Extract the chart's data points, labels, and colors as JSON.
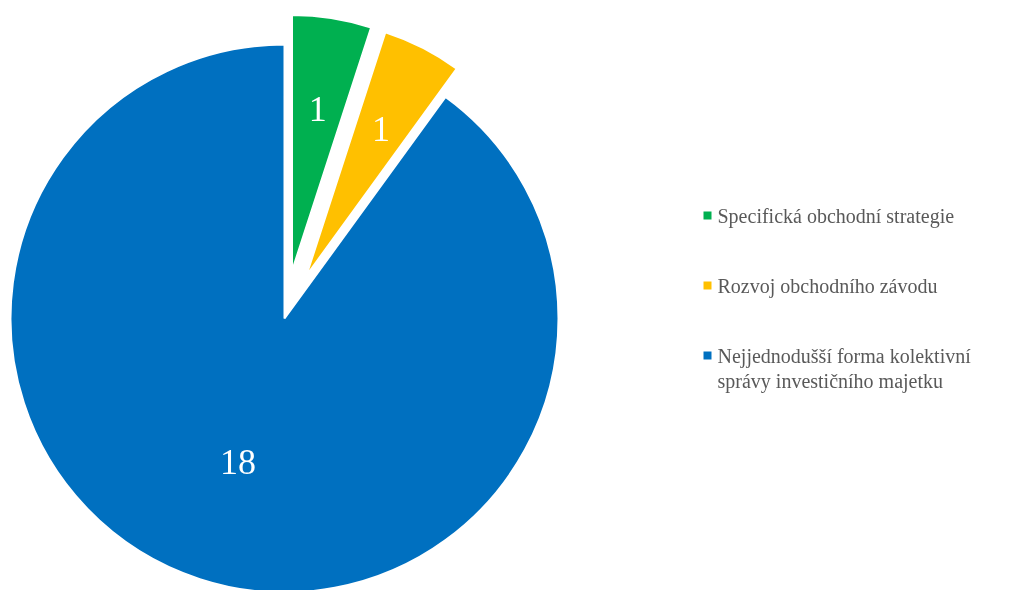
{
  "chart_data": {
    "type": "pie",
    "categories": [
      "Specifická obchodní strategie",
      "Rozvoj obchodního závodu",
      "Nejjednodušší forma kolektivní správy investičního majetku"
    ],
    "values": [
      1,
      1,
      18
    ],
    "colors": [
      "#00b050",
      "#ffc000",
      "#0070c0"
    ],
    "data_labels": true,
    "legend": "right"
  }
}
